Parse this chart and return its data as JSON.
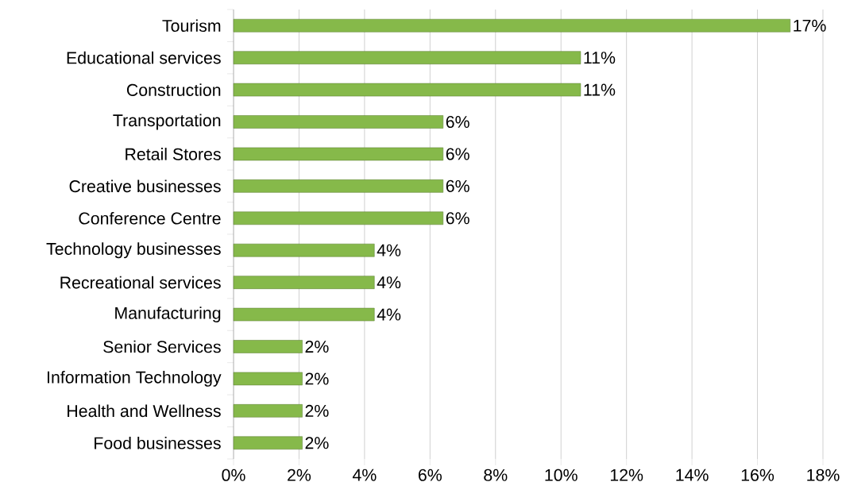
{
  "chart_data": {
    "type": "bar",
    "orientation": "horizontal",
    "categories": [
      "Tourism",
      "Educational services",
      "Construction",
      "Transportation",
      "Retail Stores",
      "Creative businesses",
      "Conference Centre",
      "Technology businesses",
      "Recreational services",
      "Manufacturing",
      "Senior Services",
      "Information Technology",
      "Health and Wellness",
      "Food businesses"
    ],
    "values": [
      17.0,
      10.6,
      10.6,
      6.4,
      6.4,
      6.4,
      6.4,
      4.3,
      4.3,
      4.3,
      2.1,
      2.1,
      2.1,
      2.1
    ],
    "value_labels": [
      "17%",
      "11%",
      "11%",
      "6%",
      "6%",
      "6%",
      "6%",
      "4%",
      "4%",
      "4%",
      "2%",
      "2%",
      "2%",
      "2%"
    ],
    "color": "#86b94a",
    "xlim": [
      0,
      18
    ],
    "xticks": [
      {
        "value": 0,
        "label": "0%"
      },
      {
        "value": 2,
        "label": "2%"
      },
      {
        "value": 4,
        "label": "4%"
      },
      {
        "value": 6,
        "label": "6%"
      },
      {
        "value": 8,
        "label": "8%"
      },
      {
        "value": 10,
        "label": "10%"
      },
      {
        "value": 12,
        "label": "12%"
      },
      {
        "value": 14,
        "label": "14%"
      },
      {
        "value": 16,
        "label": "16%"
      },
      {
        "value": 18,
        "label": "18%"
      }
    ],
    "grid": "x"
  }
}
